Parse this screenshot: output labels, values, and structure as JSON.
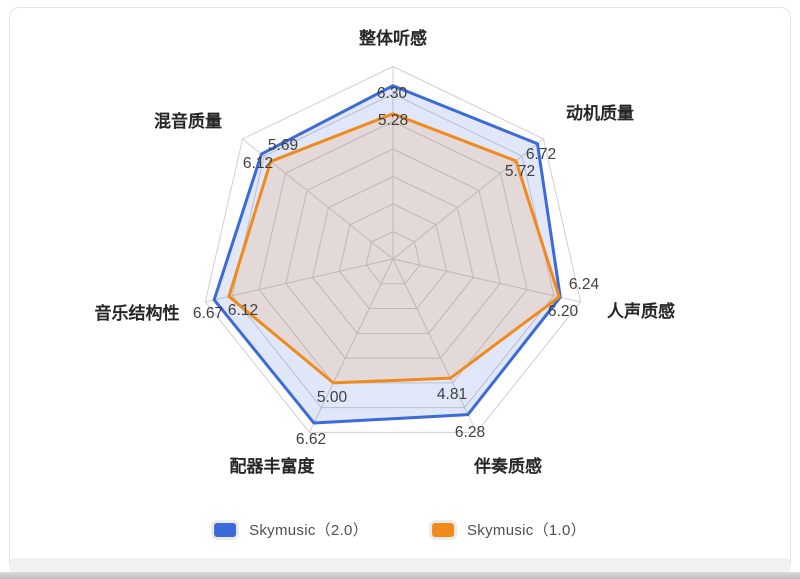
{
  "chart_data": {
    "type": "radar",
    "categories": [
      "整体听感",
      "动机质量",
      "人声质感",
      "伴奏质感",
      "配器丰富度",
      "音乐结构性",
      "混音质量"
    ],
    "series": [
      {
        "name": "Skymusic（2.0）",
        "color": "#3c6ad9",
        "fill": "rgba(60,106,217,0.16)",
        "values": [
          6.3,
          6.72,
          6.24,
          6.28,
          6.62,
          6.67,
          6.12
        ]
      },
      {
        "name": "Skymusic（1.0）",
        "color": "#f08a1d",
        "fill": "rgba(240,138,29,0.15)",
        "values": [
          5.28,
          5.72,
          6.2,
          4.81,
          5.0,
          6.12,
          5.69
        ]
      }
    ],
    "axis_range": [
      0,
      7
    ],
    "rings": 7,
    "grid_color": "#d4cece",
    "value_label_decimals": 2,
    "legend_position": "bottom",
    "title": ""
  },
  "legend": {
    "items": [
      {
        "label": "Skymusic（2.0）",
        "color": "#3c6ad9"
      },
      {
        "label": "Skymusic（1.0）",
        "color": "#f08a1d"
      }
    ]
  }
}
